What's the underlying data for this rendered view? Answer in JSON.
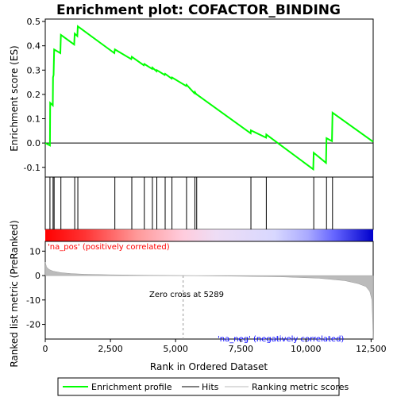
{
  "chart_data": {
    "type": "line",
    "title": "Enrichment plot: COFACTOR_BINDING",
    "top_panel": {
      "ylabel": "Enrichment score (ES)",
      "ylim": [
        -0.14,
        0.51
      ],
      "yticks": [
        -0.1,
        0.0,
        0.1,
        0.2,
        0.3,
        0.4,
        0.5
      ],
      "ytick_labels": [
        "-0.1",
        "0.0",
        "0.1",
        "0.2",
        "0.3",
        "0.4",
        "0.5"
      ],
      "series": [
        {
          "name": "Enrichment profile",
          "color": "#00ff00",
          "x": [
            0,
            180,
            190,
            290,
            300,
            320,
            340,
            580,
            600,
            1110,
            1130,
            1230,
            1250,
            2650,
            2670,
            3300,
            3320,
            3780,
            3800,
            4100,
            4110,
            4270,
            4280,
            4580,
            4600,
            4850,
            4860,
            5400,
            5420,
            5720,
            5740,
            5800,
            5810,
            7880,
            7890,
            8470,
            8480,
            10280,
            10300,
            10770,
            10790,
            11000,
            11020,
            12580
          ],
          "y": [
            0.0,
            -0.01,
            0.165,
            0.155,
            0.27,
            0.28,
            0.385,
            0.37,
            0.445,
            0.405,
            0.45,
            0.44,
            0.48,
            0.37,
            0.385,
            0.345,
            0.355,
            0.32,
            0.325,
            0.305,
            0.31,
            0.295,
            0.3,
            0.28,
            0.285,
            0.265,
            0.27,
            0.235,
            0.24,
            0.205,
            0.21,
            0.2,
            0.2,
            0.04,
            0.052,
            0.022,
            0.035,
            -0.108,
            -0.04,
            -0.082,
            0.02,
            0.008,
            0.125,
            0.005
          ]
        }
      ]
    },
    "hits": {
      "name": "Hits",
      "positions": [
        180,
        300,
        340,
        600,
        1130,
        1250,
        2670,
        3320,
        3800,
        4110,
        4280,
        4600,
        4860,
        5420,
        5740,
        5810,
        7890,
        8480,
        10300,
        10790,
        11020
      ]
    },
    "bottom_panel": {
      "name": "Ranking metric scores",
      "ylabel": "Ranked list metric (PreRanked)",
      "ylim": [
        -26,
        14
      ],
      "yticks": [
        -20,
        -10,
        0,
        10
      ],
      "ytick_labels": [
        "-20",
        "-10",
        "0",
        "10"
      ],
      "rank_x": [
        0,
        50,
        150,
        300,
        600,
        1000,
        1500,
        2500,
        4000,
        5289,
        7000,
        9000,
        10500,
        11500,
        12000,
        12300,
        12450,
        12530,
        12560,
        12580
      ],
      "rank_y": [
        5.5,
        3.5,
        2.5,
        1.8,
        1.2,
        0.8,
        0.55,
        0.3,
        0.1,
        0.0,
        -0.2,
        -0.5,
        -1.1,
        -2.1,
        -3.3,
        -4.5,
        -6.5,
        -10,
        -18,
        -26
      ],
      "zero_cross_text": "Zero cross at 5289",
      "zero_cross_x": 5289,
      "pos_label": "'na_pos' (positively correlated)",
      "neg_label": "'na_neg' (negatively correlated)",
      "pos_color": "#ff0000",
      "neg_color": "#0000ff"
    },
    "xlabel": "Rank in Ordered Dataset",
    "xlim": [
      0,
      12580
    ],
    "xticks": [
      0,
      2500,
      5000,
      7500,
      10000,
      12500
    ],
    "xtick_labels": [
      "0",
      "2,500",
      "5,000",
      "7,500",
      "10,000",
      "12,500"
    ],
    "legend": {
      "position": "bottom",
      "items": [
        {
          "label": "Enrichment profile",
          "color": "#00ff00"
        },
        {
          "label": "Hits",
          "color": "#000000"
        },
        {
          "label": "Ranking metric scores",
          "color": "#bbbbbb"
        }
      ]
    }
  }
}
